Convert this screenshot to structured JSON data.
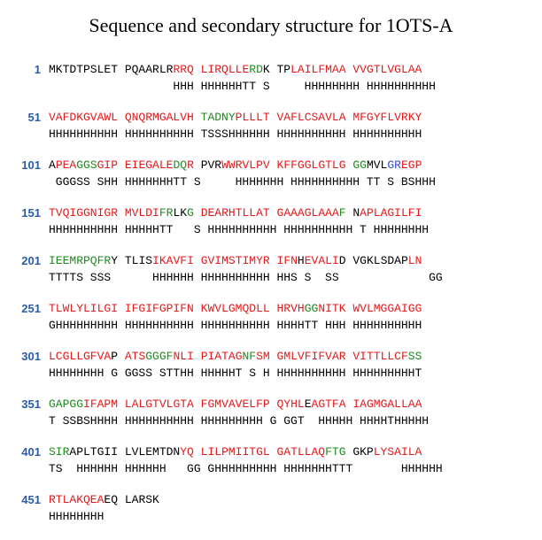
{
  "title": "Sequence and secondary structure for 1OTS-A",
  "colors": {
    "r": "#e31a1c",
    "g": "#1f8a1f",
    "b": "#3348d6",
    "k": "#000000",
    "number": "#2a5da8"
  },
  "rows": [
    {
      "number": "1",
      "sequence": "MKTDTPSLET PQAARLRRRQ LIRQLLERDK TPLAILFMAA VVGTLVGLAA",
      "color_mask": "kkkkkkkkkk kkkkkkkrrr rrrrrrrggk kkrrrrrrrr rrrrrrrrrr",
      "structure": "                  HHH HHHHHHTT S     HHHHHHHH HHHHHHHHHH"
    },
    {
      "number": "51",
      "sequence": "VAFDKGVAWL QNQRMGALVH TADNYPLLLT VAFLCSAVLA MFGYFLVRKY",
      "color_mask": "rrrrrrrrrr rrrrrrrrrr gggggrrrrr rrrrrrrrrr rrrrrrrrrr",
      "structure": "HHHHHHHHHH HHHHHHHHHH TSSSHHHHHH HHHHHHHHHH HHHHHHHHHH"
    },
    {
      "number": "101",
      "sequence": "APEAGGSGIP EIEGALEDQR PVRWWRVLPV KFFGGLGTLG GGMVLGREGP",
      "color_mask": "krrrgggrrr rrrrrrrggr kkkrrrrrrr rrrrrrrrrr ggkkkbbrrr",
      "structure": " GGGSS SHH HHHHHHHTT S     HHHHHHH HHHHHHHHHH TT S BSHHH"
    },
    {
      "number": "151",
      "sequence": "TVQIGGNIGR MVLDIFRLKG DEARHTLLAT GAAAGLAAAF NAPLAGILFI",
      "color_mask": "rrrrrrrrrr rrrrrggkkg rrrrrrrrrr rrrrrrrrrg krrrrrrrrr",
      "structure": "HHHHHHHHHH HHHHHTT   S HHHHHHHHHH HHHHHHHHHH T HHHHHHHH"
    },
    {
      "number": "201",
      "sequence": "IEEMRPQFRY TLISIKAVFI GVIMSTIMYR IFNHEVALID VGKLSDAPLN",
      "color_mask": "gggggggggk kkkkrrrrrr rrrrrrrrrr rrrkrrrrrk kkkkkkkkrr",
      "structure": "TTTTS SSS      HHHHHH HHHHHHHHHH HHS S  SS             GG"
    },
    {
      "number": "251",
      "sequence": "TLWLYLILGI IFGIFGPIFN KWVLGMQDLL HRVHGGNITK WVLMGGAIGG",
      "color_mask": "rrrrrrrrrr rrrrrrrrrr rrrrrrrrrr rrrrggrrrr rrrrrrrrrr",
      "structure": "GHHHHHHHHH HHHHHHHHHH HHHHHHHHHH HHHHTT HHH HHHHHHHHHH"
    },
    {
      "number": "301",
      "sequence": "LCGLLGFVAP ATSGGGFNLI PIATAGNFSM GMLVFIFVAR VITTLLCFSS",
      "color_mask": "rrrrrrrrrk rrrggggrrr rrrrrrggrr rrrrrrrrrr rrrrrrrrgg",
      "structure": "HHHHHHHH G GGSS STTHH HHHHHT S H HHHHHHHHHH HHHHHHHHHT"
    },
    {
      "number": "351",
      "sequence": "GAPGGIFAPM LALGTVLGTA FGMVAVELFP QYHLEAGTFA IAGMGALLAA",
      "color_mask": "gggggrrrrr rrrrrrrrrr rrrrrrrrrr rrrrkrrrrr rrrrrrrrrr",
      "structure": "T SSBSHHHH HHHHHHHHHH HHHHHHHHH G GGT  HHHHH HHHHTHHHHH"
    },
    {
      "number": "401",
      "sequence": "SIRAPLTGII LVLEMTDNYQ LILPMIITGL GATLLAQFTG GKPLYSAILA",
      "color_mask": "gggkkkkkkk kkkkkkkkrr rrrrrrrrrr rrrrrrrggg kkkrrrrrrr",
      "structure": "TS  HHHHHH HHHHHH   GG GHHHHHHHHH HHHHHHHTTT       HHHHHH"
    },
    {
      "number": "451",
      "sequence": "RTLAKQEAEQ LARSK",
      "color_mask": "rrrrrrrrkk kkkkk",
      "structure": "HHHHHHHH"
    }
  ]
}
